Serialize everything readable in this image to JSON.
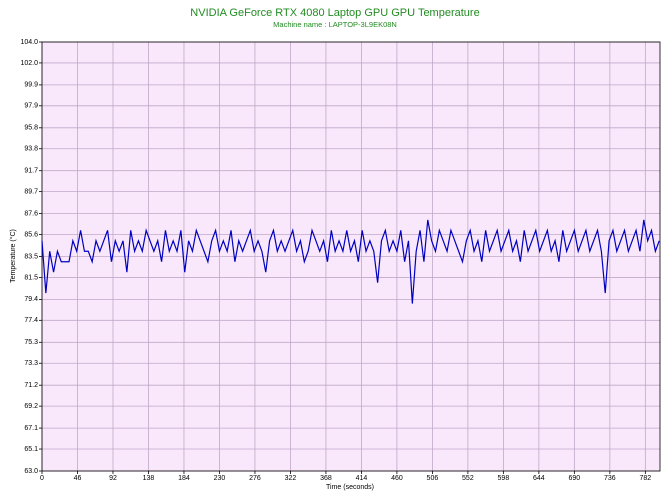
{
  "chart_data": {
    "type": "line",
    "title": "NVIDIA GeForce RTX 4080 Laptop GPU GPU Temperature",
    "subtitle": "Machine name : LAPTOP-3L9EK08N",
    "x_label": "Time (seconds)",
    "y_label": "Temperature (°C)",
    "color": "#0000c0",
    "grid": true,
    "xlim": [
      0,
      801
    ],
    "ylim": [
      63,
      104
    ],
    "xticks": [
      0,
      46,
      92,
      138,
      184,
      230,
      276,
      322,
      368,
      414,
      460,
      506,
      552,
      598,
      644,
      690,
      736,
      782
    ],
    "yticks": [
      {
        "value": 63,
        "label": "63.0"
      },
      65.1,
      67.1,
      69.2,
      71.2,
      73.3,
      75.3,
      77.4,
      79.4,
      81.5,
      83.5,
      85.6,
      87.6,
      89.7,
      91.7,
      93.8,
      95.8,
      97.9,
      99.9,
      {
        "value": 102,
        "label": "102.0"
      },
      {
        "value": 104,
        "label": "104.0"
      }
    ],
    "x": [
      0,
      5,
      10,
      15,
      20,
      25,
      30,
      35,
      40,
      45,
      50,
      55,
      60,
      65,
      70,
      75,
      80,
      85,
      90,
      95,
      100,
      105,
      110,
      115,
      120,
      125,
      130,
      135,
      140,
      145,
      150,
      155,
      160,
      165,
      170,
      175,
      180,
      185,
      190,
      195,
      200,
      205,
      210,
      215,
      220,
      225,
      230,
      235,
      240,
      245,
      250,
      255,
      260,
      265,
      270,
      275,
      280,
      285,
      290,
      295,
      300,
      305,
      310,
      315,
      320,
      325,
      330,
      335,
      340,
      345,
      350,
      355,
      360,
      365,
      370,
      375,
      380,
      385,
      390,
      395,
      400,
      405,
      410,
      415,
      420,
      425,
      430,
      435,
      440,
      445,
      450,
      455,
      460,
      465,
      470,
      475,
      480,
      485,
      490,
      495,
      500,
      505,
      510,
      515,
      520,
      525,
      530,
      535,
      540,
      545,
      550,
      555,
      560,
      565,
      570,
      575,
      580,
      585,
      590,
      595,
      600,
      605,
      610,
      615,
      620,
      625,
      630,
      635,
      640,
      645,
      650,
      655,
      660,
      665,
      670,
      675,
      680,
      685,
      690,
      695,
      700,
      705,
      710,
      715,
      720,
      725,
      730,
      735,
      740,
      745,
      750,
      755,
      760,
      765,
      770,
      775,
      780,
      785,
      790,
      795,
      800
    ],
    "values": [
      85,
      80,
      84,
      82,
      84,
      83,
      83,
      83,
      85,
      84,
      86,
      84,
      84,
      83,
      85,
      84,
      85,
      86,
      83,
      85,
      84,
      85,
      82,
      86,
      84,
      85,
      84,
      86,
      85,
      84,
      85,
      83,
      86,
      84,
      85,
      84,
      86,
      82,
      85,
      84,
      86,
      85,
      84,
      83,
      85,
      86,
      84,
      85,
      84,
      86,
      83,
      85,
      84,
      85,
      86,
      84,
      85,
      84,
      82,
      85,
      86,
      84,
      85,
      84,
      85,
      86,
      84,
      85,
      83,
      84,
      86,
      85,
      84,
      85,
      83,
      86,
      84,
      85,
      84,
      86,
      84,
      85,
      83,
      86,
      84,
      85,
      84,
      81,
      85,
      86,
      84,
      85,
      84,
      86,
      83,
      85,
      79,
      84,
      86,
      83,
      87,
      85,
      84,
      86,
      85,
      84,
      86,
      85,
      84,
      83,
      85,
      86,
      84,
      85,
      83,
      86,
      84,
      85,
      86,
      84,
      85,
      86,
      84,
      85,
      83,
      86,
      84,
      85,
      86,
      84,
      85,
      86,
      84,
      85,
      83,
      86,
      84,
      85,
      86,
      84,
      85,
      86,
      84,
      85,
      86,
      84,
      80,
      85,
      86,
      84,
      85,
      86,
      84,
      85,
      86,
      84,
      87,
      85,
      86,
      84,
      85
    ]
  }
}
